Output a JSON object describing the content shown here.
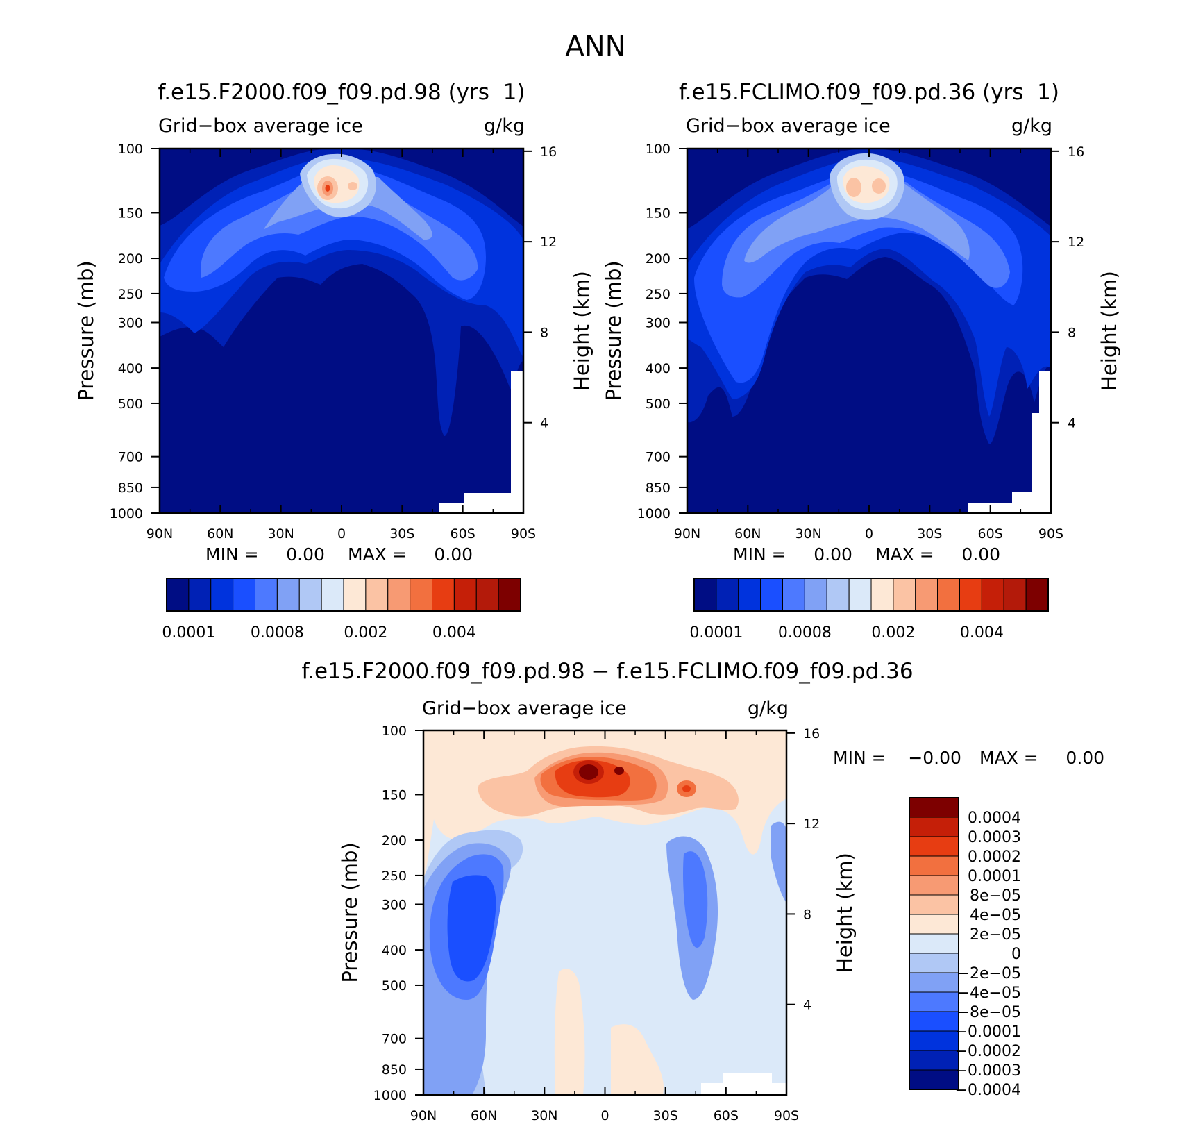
{
  "figure_title": "ANN",
  "colors": {
    "seq": [
      "#000d84",
      "#0021b5",
      "#0033dd",
      "#1a4fff",
      "#4d79ff",
      "#80a1f5",
      "#b0c8f5",
      "#dbe9f9",
      "#fde8d6",
      "#fbc3a4",
      "#f79a73",
      "#f2703f",
      "#e73d12",
      "#c51f08",
      "#b31a0a",
      "#7d0000"
    ],
    "diff": [
      "#000d84",
      "#0021b5",
      "#0033dd",
      "#1a4fff",
      "#4d79ff",
      "#80a1f5",
      "#b0c8f5",
      "#dbe9f9",
      "#fde8d6",
      "#fbc3a4",
      "#f79a73",
      "#f2703f",
      "#e73d12",
      "#c51f08",
      "#7d0000"
    ],
    "missing": "#ffffff"
  },
  "chart_data": [
    {
      "type": "heatmap",
      "title": "f.e15.F2000.f09_f09.pd.98 (yrs  1)",
      "left_label": "Grid−box average ice",
      "right_label": "g/kg",
      "xlabel": "",
      "ylabel": "Pressure (mb)",
      "y2label": "Height (km)",
      "x_ticks": [
        "90N",
        "60N",
        "30N",
        "0",
        "30S",
        "60S",
        "90S"
      ],
      "x_range": [
        90,
        -90
      ],
      "y_ticks": [
        "100",
        "150",
        "200",
        "250",
        "300",
        "400",
        "500",
        "700",
        "850",
        "1000"
      ],
      "y_range_mb": [
        100,
        1000
      ],
      "y_scale": "log",
      "y2_ticks": [
        "16",
        "12",
        "8",
        "4"
      ],
      "min_text": "MIN =     0.00",
      "max_text": "MAX =     0.00",
      "colorbar_labels": [
        "0.0001",
        "0.0008",
        "0.002",
        "0.004"
      ],
      "levels": 16
    },
    {
      "type": "heatmap",
      "title": "f.e15.FCLIMO.f09_f09.pd.36 (yrs  1)",
      "left_label": "Grid−box average ice",
      "right_label": "g/kg",
      "xlabel": "",
      "ylabel": "Pressure (mb)",
      "y2label": "Height (km)",
      "x_ticks": [
        "90N",
        "60N",
        "30N",
        "0",
        "30S",
        "60S",
        "90S"
      ],
      "x_range": [
        90,
        -90
      ],
      "y_ticks": [
        "100",
        "150",
        "200",
        "250",
        "300",
        "400",
        "500",
        "700",
        "850",
        "1000"
      ],
      "y_range_mb": [
        100,
        1000
      ],
      "y_scale": "log",
      "y2_ticks": [
        "16",
        "12",
        "8",
        "4"
      ],
      "min_text": "MIN =     0.00",
      "max_text": "MAX =     0.00",
      "colorbar_labels": [
        "0.0001",
        "0.0008",
        "0.002",
        "0.004"
      ],
      "levels": 16
    },
    {
      "type": "heatmap",
      "title": "f.e15.F2000.f09_f09.pd.98 − f.e15.FCLIMO.f09_f09.pd.36",
      "left_label": "Grid−box average ice",
      "right_label": "g/kg",
      "xlabel": "",
      "ylabel": "Pressure (mb)",
      "y2label": "Height (km)",
      "x_ticks": [
        "90N",
        "60N",
        "30N",
        "0",
        "30S",
        "60S",
        "90S"
      ],
      "x_range": [
        90,
        -90
      ],
      "y_ticks": [
        "100",
        "150",
        "200",
        "250",
        "300",
        "400",
        "500",
        "700",
        "850",
        "1000"
      ],
      "y_range_mb": [
        100,
        1000
      ],
      "y_scale": "log",
      "y2_ticks": [
        "16",
        "12",
        "8",
        "4"
      ],
      "min_text": "MIN =    −0.00",
      "max_text": "MAX =     0.00",
      "colorbar_labels": [
        "0.0004",
        "0.0003",
        "0.0002",
        "0.0001",
        "8e−05",
        "4e−05",
        "2e−05",
        "0",
        "−2e−05",
        "−4e−05",
        "−8e−05",
        "−0.0001",
        "−0.0002",
        "−0.0003",
        "−0.0004"
      ],
      "levels": 15
    }
  ]
}
